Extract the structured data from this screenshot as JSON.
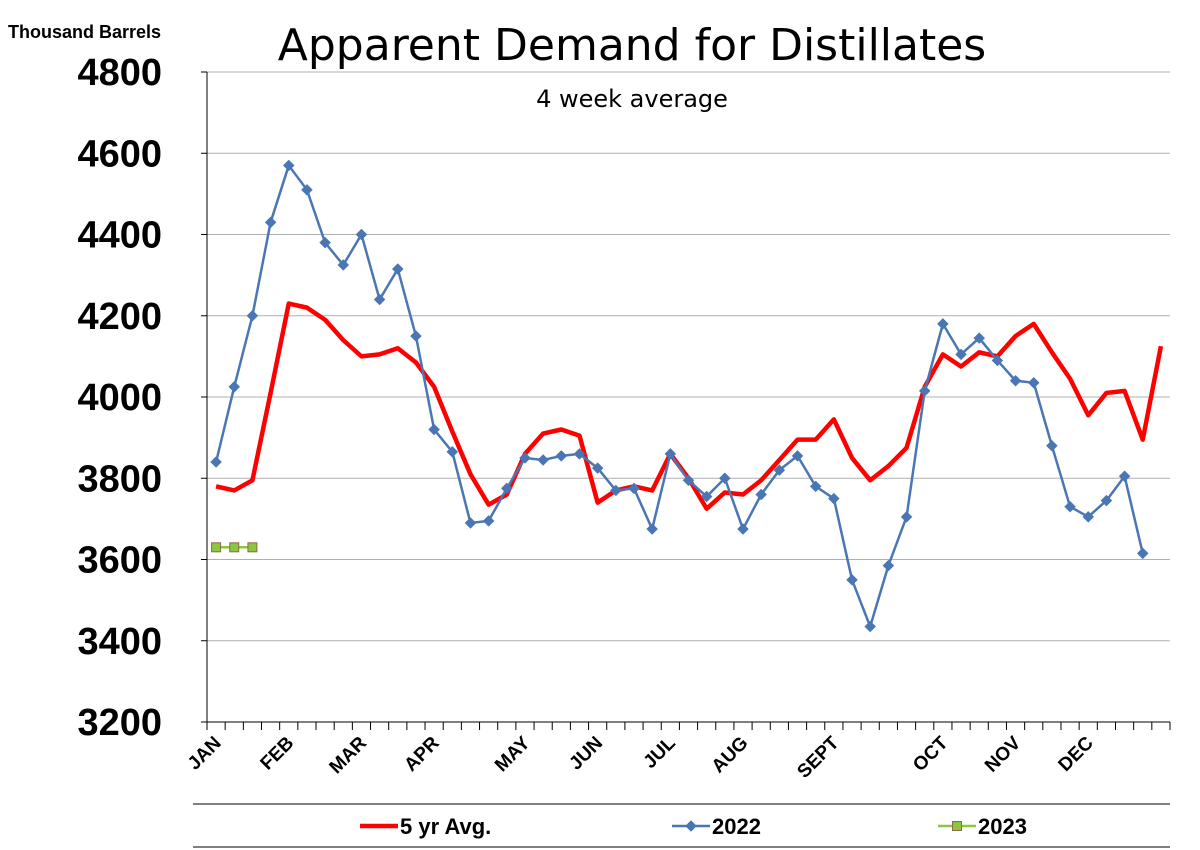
{
  "chart_data": {
    "type": "line",
    "title": "Apparent Demand for Distillates",
    "subtitle": "4 week average",
    "ylabel": "Thousand Barrels",
    "ylim": [
      3200,
      4800
    ],
    "yticks": [
      3200,
      3400,
      3600,
      3800,
      4000,
      4200,
      4400,
      4600,
      4800
    ],
    "weeks_per_year": 53,
    "month_labels": [
      {
        "label": "JAN",
        "week": 1
      },
      {
        "label": "FEB",
        "week": 5
      },
      {
        "label": "MAR",
        "week": 9
      },
      {
        "label": "APR",
        "week": 13
      },
      {
        "label": "MAY",
        "week": 18
      },
      {
        "label": "JUN",
        "week": 22
      },
      {
        "label": "JUL",
        "week": 26
      },
      {
        "label": "AUG",
        "week": 30
      },
      {
        "label": "SEPT",
        "week": 35
      },
      {
        "label": "OCT",
        "week": 41
      },
      {
        "label": "NOV",
        "week": 45
      },
      {
        "label": "DEC",
        "week": 49
      }
    ],
    "grid": "horizontal",
    "legend_position": "bottom",
    "series": [
      {
        "name": "5 yr Avg.",
        "color": "#ff0000",
        "marker": "none",
        "values": [
          3780,
          3770,
          3795,
          4010,
          4230,
          4220,
          4190,
          4140,
          4100,
          4105,
          4120,
          4085,
          4025,
          3915,
          3810,
          3735,
          3760,
          3860,
          3910,
          3920,
          3905,
          3740,
          3770,
          3780,
          3770,
          3860,
          3800,
          3725,
          3765,
          3760,
          3795,
          3845,
          3895,
          3895,
          3945,
          3850,
          3795,
          3830,
          3875,
          4025,
          4105,
          4075,
          4110,
          4100,
          4150,
          4180,
          4110,
          4045,
          3955,
          4010,
          4015,
          3895,
          4125
        ]
      },
      {
        "name": "2022",
        "color": "#4a77b4",
        "marker": "diamond",
        "values": [
          3840,
          4025,
          4200,
          4430,
          4570,
          4510,
          4380,
          4325,
          4400,
          4240,
          4315,
          4150,
          3920,
          3865,
          3690,
          3695,
          3775,
          3850,
          3845,
          3855,
          3860,
          3825,
          3770,
          3775,
          3675,
          3860,
          3795,
          3755,
          3800,
          3675,
          3760,
          3820,
          3855,
          3780,
          3750,
          3550,
          3435,
          3585,
          3705,
          4015,
          4180,
          4105,
          4145,
          4090,
          4040,
          4035,
          3880,
          3730,
          3705,
          3745,
          3805,
          3615
        ]
      },
      {
        "name": "2023",
        "color": "#8cc63f",
        "marker": "square",
        "values": [
          3630,
          3630,
          3630
        ]
      }
    ]
  }
}
